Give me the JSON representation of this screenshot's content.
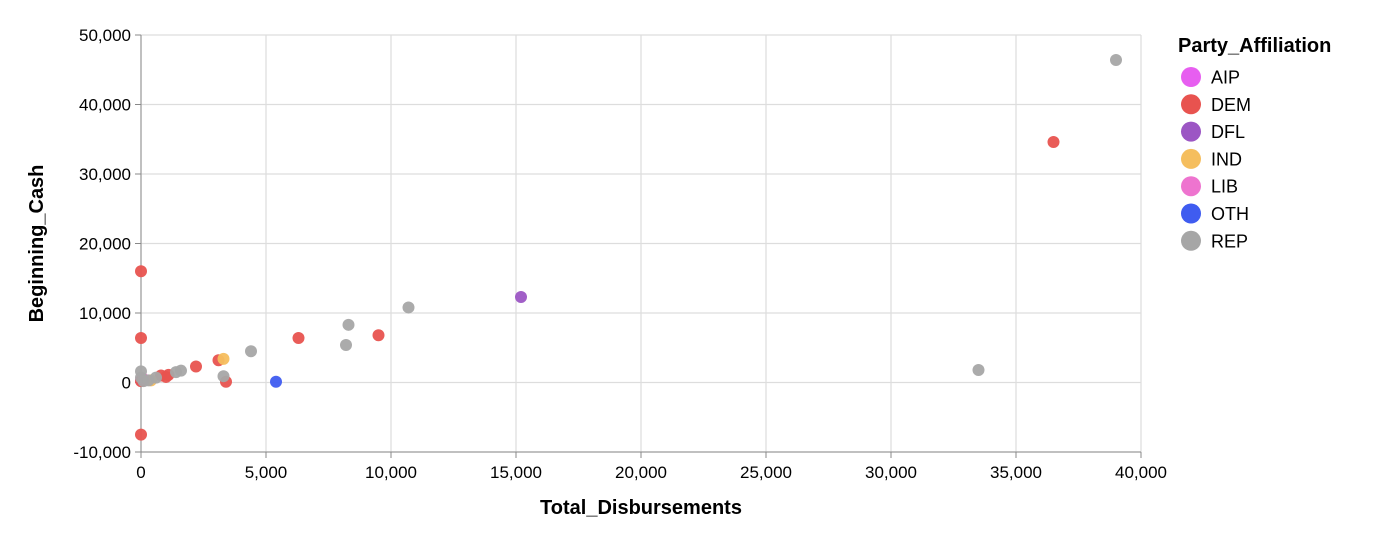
{
  "chart_data": {
    "type": "scatter",
    "xlabel": "Total_Disbursements",
    "ylabel": "Beginning_Cash",
    "xlim": [
      0,
      40000
    ],
    "ylim": [
      -10000,
      50000
    ],
    "x_ticks": [
      0,
      5000,
      10000,
      15000,
      20000,
      25000,
      30000,
      35000,
      40000
    ],
    "x_tick_labels": [
      "0",
      "5,000",
      "10,000",
      "15,000",
      "20,000",
      "25,000",
      "30,000",
      "35,000",
      "40,000"
    ],
    "y_ticks": [
      -10000,
      0,
      10000,
      20000,
      30000,
      40000,
      50000
    ],
    "y_tick_labels": [
      "-10,000",
      "0",
      "10,000",
      "20,000",
      "30,000",
      "40,000",
      "50,000"
    ],
    "grid": true,
    "legend": {
      "title": "Party_Affiliation",
      "position": "right"
    },
    "series": [
      {
        "name": "AIP",
        "color": "#e75ef0",
        "points": [
          [
            0,
            300
          ]
        ]
      },
      {
        "name": "DEM",
        "color": "#e8534f",
        "points": [
          [
            0,
            16000
          ],
          [
            0,
            6400
          ],
          [
            0,
            -7500
          ],
          [
            0,
            200
          ],
          [
            800,
            1000
          ],
          [
            1000,
            800
          ],
          [
            1100,
            1100
          ],
          [
            2200,
            2300
          ],
          [
            3100,
            3200
          ],
          [
            3400,
            100
          ],
          [
            6300,
            6400
          ],
          [
            9500,
            6800
          ],
          [
            36500,
            34600
          ]
        ]
      },
      {
        "name": "DFL",
        "color": "#9c56c4",
        "points": [
          [
            15200,
            12300
          ]
        ]
      },
      {
        "name": "IND",
        "color": "#f5be5e",
        "points": [
          [
            400,
            300
          ],
          [
            3300,
            3400
          ]
        ]
      },
      {
        "name": "LIB",
        "color": "#ee74cf",
        "points": [
          [
            100,
            500
          ]
        ]
      },
      {
        "name": "OTH",
        "color": "#3f5cf0",
        "points": [
          [
            5400,
            100
          ]
        ]
      },
      {
        "name": "REP",
        "color": "#a6a6a6",
        "points": [
          [
            0,
            1600
          ],
          [
            0,
            700
          ],
          [
            100,
            200
          ],
          [
            300,
            300
          ],
          [
            600,
            700
          ],
          [
            1400,
            1500
          ],
          [
            1600,
            1700
          ],
          [
            3300,
            900
          ],
          [
            4400,
            4500
          ],
          [
            8200,
            5400
          ],
          [
            8300,
            8300
          ],
          [
            10700,
            10800
          ],
          [
            33500,
            1800
          ],
          [
            39000,
            46400
          ]
        ]
      }
    ]
  }
}
